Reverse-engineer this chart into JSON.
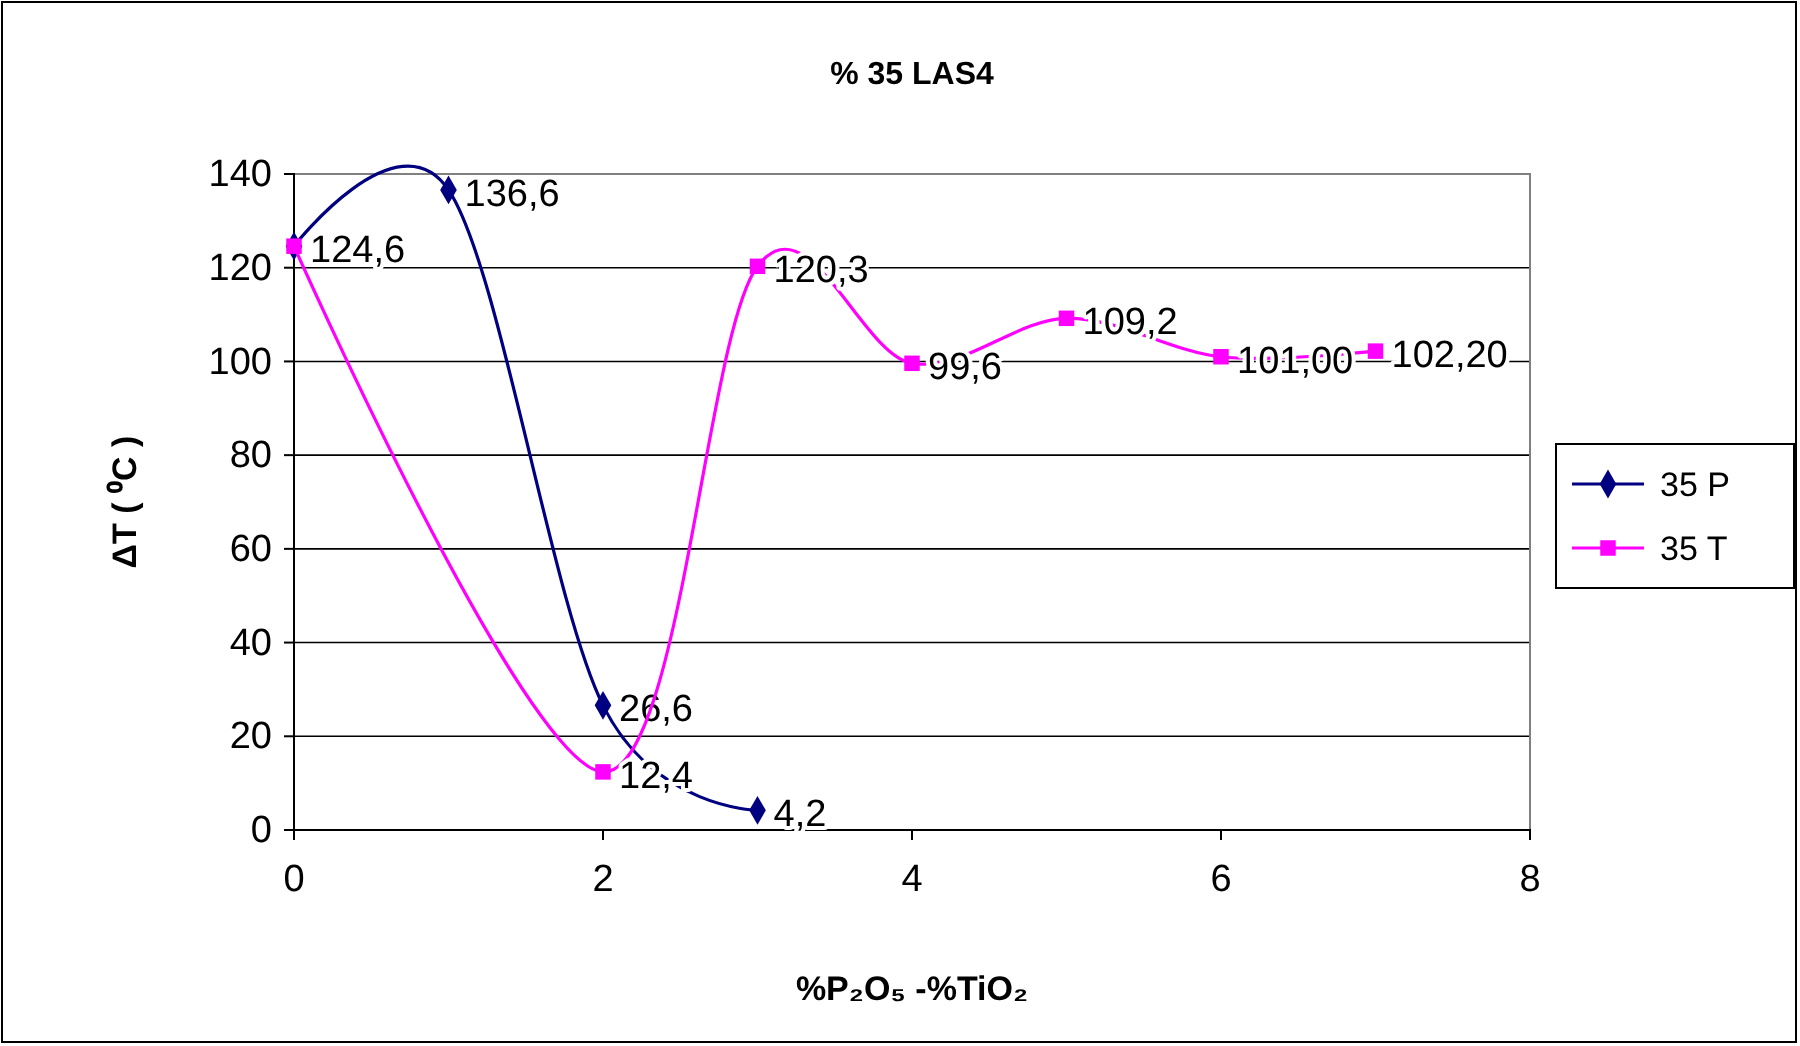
{
  "chart_data": {
    "type": "line",
    "title": "% 35 LAS4",
    "xlabel": "%P₂O₅ -%TiO₂",
    "ylabel": "ΔT ( ⁰C )",
    "xlim": [
      0,
      8
    ],
    "xticks": [
      0,
      2,
      4,
      6,
      8
    ],
    "ylim": [
      0,
      140
    ],
    "yticks": [
      0,
      20,
      40,
      60,
      80,
      100,
      120,
      140
    ],
    "grid": "y",
    "legend": "right",
    "line_style": "solid",
    "series": [
      {
        "name": "35 P",
        "color": "#000080",
        "marker": "diamond",
        "x": [
          0,
          1,
          2,
          3
        ],
        "values": [
          124.6,
          136.6,
          26.6,
          4.2
        ],
        "value_labels": [
          "124,6",
          "136,6",
          "26,6",
          "4,2"
        ]
      },
      {
        "name": "35 T",
        "color": "#ff00ff",
        "marker": "square",
        "x": [
          0,
          2,
          3,
          4,
          5,
          6,
          7
        ],
        "values": [
          124.6,
          12.4,
          120.3,
          99.6,
          109.2,
          101.0,
          102.2
        ],
        "value_labels": [
          null,
          "12,4",
          "120,3",
          "99,6",
          "109,2",
          "101,00",
          "102,20"
        ]
      }
    ]
  }
}
